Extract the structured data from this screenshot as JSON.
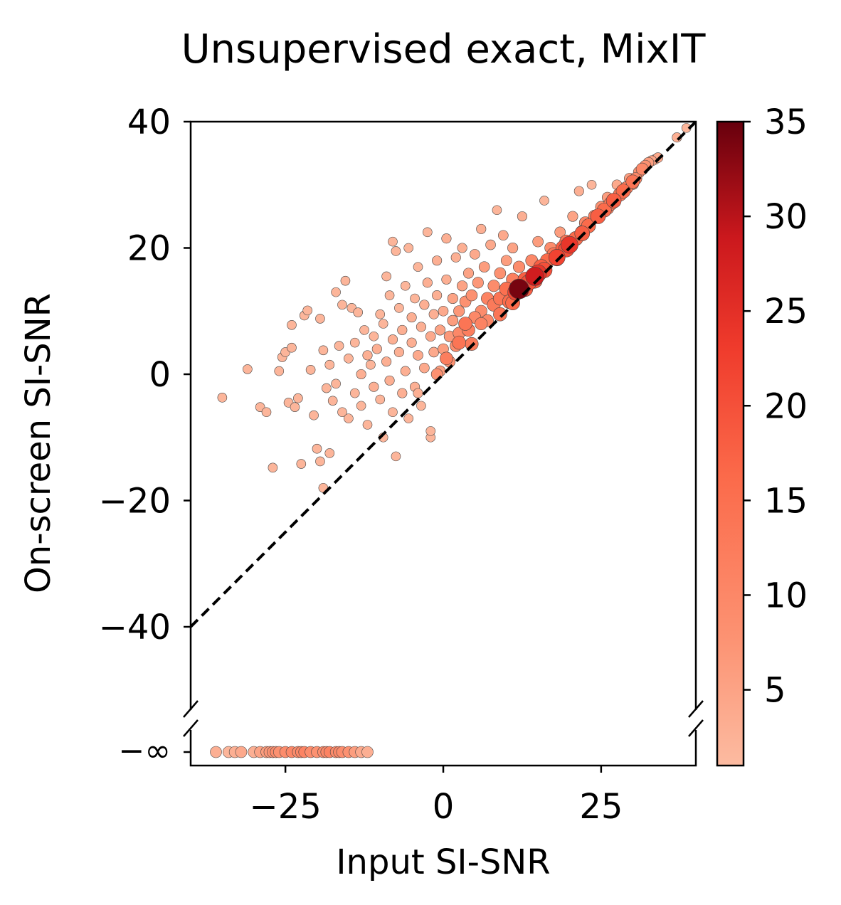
{
  "chart_data": {
    "type": "scatter",
    "title": "Unsupervised exact, MixIT",
    "xlabel": "Input SI-SNR",
    "ylabel": "On-screen SI-SNR",
    "xlim": [
      -40,
      40
    ],
    "ylim": [
      -62,
      40
    ],
    "x_ticks": [
      -25,
      0,
      25
    ],
    "x_tick_labels": [
      "−25",
      "0",
      "25"
    ],
    "y_ticks": [
      40,
      20,
      0,
      -20,
      -40
    ],
    "y_tick_labels": [
      "40",
      "20",
      "0",
      "−20",
      "−40"
    ],
    "neg_inf_label": "−∞",
    "axis_break": true,
    "reference_line": {
      "style": "dashed",
      "color": "#000000",
      "from": [
        -40,
        -40
      ],
      "to": [
        40,
        40
      ]
    },
    "colorbar": {
      "min": 1,
      "max": 35,
      "ticks": [
        5,
        10,
        15,
        20,
        25,
        30,
        35
      ],
      "tick_labels": [
        "5",
        "10",
        "15",
        "20",
        "25",
        "30",
        "35"
      ],
      "colormap": "Reds"
    },
    "grid": false,
    "series": [
      {
        "points": [
          [
            -35,
            -3.7,
            2
          ],
          [
            -31,
            0.8,
            2
          ],
          [
            -29,
            -5.2,
            2
          ],
          [
            -28,
            -6,
            2
          ],
          [
            -27,
            -14.8,
            2
          ],
          [
            -26,
            0.5,
            2
          ],
          [
            -25.5,
            2.7,
            2
          ],
          [
            -25,
            3.5,
            2
          ],
          [
            -24.5,
            -4.5,
            2
          ],
          [
            -24,
            4.2,
            2
          ],
          [
            -24,
            7.8,
            2
          ],
          [
            -23.5,
            -5.2,
            2
          ],
          [
            -23,
            -3.8,
            2
          ],
          [
            -22.5,
            -14.2,
            2
          ],
          [
            -22,
            9.3,
            2
          ],
          [
            -21.5,
            10.1,
            2
          ],
          [
            -21,
            0.7,
            2
          ],
          [
            -20.5,
            -6.5,
            2
          ],
          [
            -20,
            -11.8,
            2
          ],
          [
            -19.5,
            -13.8,
            2
          ],
          [
            -19.5,
            8.8,
            2
          ],
          [
            -19,
            3.8,
            2
          ],
          [
            -18.5,
            -2.2,
            2
          ],
          [
            -18,
            -12.5,
            2
          ],
          [
            -18,
            1.5,
            2
          ],
          [
            -17.5,
            -4.2,
            2
          ],
          [
            -17,
            13,
            2
          ],
          [
            -17,
            -1.5,
            2
          ],
          [
            -16.5,
            4.5,
            2
          ],
          [
            -16,
            11,
            2
          ],
          [
            -16,
            -6,
            2
          ],
          [
            -15.5,
            14.8,
            2
          ],
          [
            -15,
            2.5,
            2
          ],
          [
            -15,
            -7,
            2
          ],
          [
            -14.5,
            10.5,
            2
          ],
          [
            -14,
            -3,
            2
          ],
          [
            -14,
            5,
            2
          ],
          [
            -13.5,
            9.8,
            2
          ],
          [
            -13,
            -5,
            2
          ],
          [
            -13,
            0,
            3
          ],
          [
            -12.5,
            7,
            2
          ],
          [
            -12,
            3,
            3
          ],
          [
            -12,
            -8,
            2
          ],
          [
            -11.5,
            1.5,
            2
          ],
          [
            -11,
            6,
            2
          ],
          [
            -11,
            -2,
            3
          ],
          [
            -10.5,
            4,
            3
          ],
          [
            -10,
            9.5,
            2
          ],
          [
            -10,
            -4,
            2
          ],
          [
            -9.5,
            8,
            2
          ],
          [
            -9.5,
            -10,
            2
          ],
          [
            -9,
            2,
            3
          ],
          [
            -9,
            15.5,
            2
          ],
          [
            -8.5,
            12.5,
            2
          ],
          [
            -8.5,
            -1,
            3
          ],
          [
            -8,
            21,
            2
          ],
          [
            -8,
            5.5,
            3
          ],
          [
            -8,
            -6,
            2
          ],
          [
            -7.5,
            19.5,
            2
          ],
          [
            -7.5,
            -13,
            2
          ],
          [
            -7,
            10.5,
            2
          ],
          [
            -7,
            3.5,
            3
          ],
          [
            -6.5,
            -3,
            3
          ],
          [
            -6.5,
            7,
            3
          ],
          [
            -6,
            14,
            2
          ],
          [
            -6,
            0.5,
            3
          ],
          [
            -5.5,
            20,
            2
          ],
          [
            -5.5,
            -7,
            2
          ],
          [
            -5,
            9,
            3
          ],
          [
            -5,
            5,
            3
          ],
          [
            -4.5,
            12,
            2
          ],
          [
            -4.5,
            -2,
            3
          ],
          [
            -4,
            17,
            2
          ],
          [
            -4,
            3,
            4
          ],
          [
            -3.5,
            7.5,
            3
          ],
          [
            -3.5,
            -5,
            2
          ],
          [
            -3,
            11,
            3
          ],
          [
            -3,
            1,
            4
          ],
          [
            -2.5,
            22.5,
            2
          ],
          [
            -2.5,
            14.5,
            3
          ],
          [
            -2,
            6,
            4
          ],
          [
            -2,
            -10,
            2
          ],
          [
            -1.5,
            9.5,
            3
          ],
          [
            -1.5,
            3.5,
            4
          ],
          [
            -1,
            18,
            3
          ],
          [
            -1,
            12.5,
            3
          ],
          [
            -0.5,
            7,
            5
          ],
          [
            -0.5,
            0.5,
            6
          ],
          [
            0,
            4,
            6
          ],
          [
            0,
            10,
            4
          ],
          [
            0.5,
            21.5,
            3
          ],
          [
            0.5,
            15,
            3
          ],
          [
            1,
            6,
            7
          ],
          [
            1,
            2,
            8
          ],
          [
            1.5,
            12,
            5
          ],
          [
            1.5,
            8.5,
            6
          ],
          [
            2,
            18.5,
            3
          ],
          [
            2,
            4.5,
            9
          ],
          [
            2.5,
            10,
            7
          ],
          [
            2.5,
            6.5,
            10
          ],
          [
            3,
            14,
            5
          ],
          [
            3,
            20,
            3
          ],
          [
            3.5,
            8,
            14
          ],
          [
            3.5,
            11.5,
            8
          ],
          [
            4,
            16,
            5
          ],
          [
            4,
            7,
            12
          ],
          [
            4.5,
            12.5,
            8
          ],
          [
            5,
            19,
            4
          ],
          [
            5,
            9,
            10
          ],
          [
            5.5,
            14.5,
            7
          ],
          [
            6,
            10,
            9
          ],
          [
            6,
            23,
            3
          ],
          [
            6.5,
            17,
            6
          ],
          [
            7,
            12,
            11
          ],
          [
            7,
            8.5,
            10
          ],
          [
            7.5,
            20.5,
            4
          ],
          [
            8,
            14,
            9
          ],
          [
            8,
            11,
            13
          ],
          [
            8.5,
            26,
            2
          ],
          [
            9,
            16,
            8
          ],
          [
            9,
            12,
            14
          ],
          [
            9.5,
            22,
            4
          ],
          [
            10,
            13.5,
            15
          ],
          [
            10,
            18,
            6
          ],
          [
            10.5,
            11.5,
            16
          ],
          [
            11,
            15,
            12
          ],
          [
            11,
            20,
            5
          ],
          [
            11.5,
            13,
            22
          ],
          [
            12,
            13.5,
            34
          ],
          [
            12,
            17,
            9
          ],
          [
            12.5,
            25,
            3
          ],
          [
            13,
            15,
            18
          ],
          [
            13.5,
            14.5,
            20
          ],
          [
            14,
            18,
            10
          ],
          [
            14.5,
            15.5,
            28
          ],
          [
            15,
            16,
            24
          ],
          [
            15,
            21,
            6
          ],
          [
            15.5,
            17,
            18
          ],
          [
            16,
            27.5,
            2
          ],
          [
            16.5,
            18,
            16
          ],
          [
            17,
            20,
            9
          ],
          [
            17.5,
            19,
            14
          ],
          [
            18,
            18.5,
            22
          ],
          [
            18.5,
            22.5,
            6
          ],
          [
            19,
            20,
            18
          ],
          [
            19.5,
            21,
            14
          ],
          [
            20,
            20.5,
            24
          ],
          [
            20.5,
            25,
            5
          ],
          [
            21,
            21.5,
            16
          ],
          [
            21.5,
            29,
            3
          ],
          [
            22,
            22.5,
            14
          ],
          [
            22.5,
            24,
            10
          ],
          [
            23,
            23.5,
            16
          ],
          [
            23.5,
            30,
            2
          ],
          [
            24,
            25,
            12
          ],
          [
            24.5,
            25,
            18
          ],
          [
            25,
            26.5,
            8
          ],
          [
            25.5,
            26,
            16
          ],
          [
            26,
            28,
            6
          ],
          [
            26.5,
            27,
            14
          ],
          [
            27,
            27.5,
            18
          ],
          [
            27.5,
            30,
            4
          ],
          [
            28,
            28.5,
            14
          ],
          [
            28.5,
            29,
            16
          ],
          [
            29,
            29.5,
            12
          ],
          [
            29.5,
            31,
            6
          ],
          [
            30,
            30.5,
            14
          ],
          [
            30.5,
            31,
            10
          ],
          [
            31,
            32,
            8
          ],
          [
            31.5,
            32.5,
            10
          ],
          [
            32,
            33,
            8
          ],
          [
            32.5,
            33.5,
            6
          ],
          [
            33,
            33.8,
            5
          ],
          [
            33.5,
            34,
            4
          ],
          [
            37,
            37.5,
            3
          ],
          [
            38.5,
            39,
            2
          ],
          [
            -2,
            -9,
            2
          ],
          [
            -4,
            -3,
            3
          ],
          [
            0.5,
            2.5,
            12
          ],
          [
            2.5,
            5,
            14
          ],
          [
            6,
            8,
            11
          ],
          [
            13,
            13.5,
            18
          ],
          [
            16,
            16.5,
            20
          ],
          [
            19.5,
            19.8,
            20
          ],
          [
            22,
            22.3,
            18
          ],
          [
            9,
            9.5,
            14
          ],
          [
            4.5,
            4.8,
            13
          ],
          [
            -1,
            0,
            8
          ],
          [
            11,
            11.3,
            16
          ],
          [
            14.5,
            14.8,
            18
          ],
          [
            18,
            18.3,
            17
          ],
          [
            26,
            26.3,
            12
          ],
          [
            30,
            30.2,
            10
          ],
          [
            34,
            34.3,
            4
          ],
          [
            -19,
            -18,
            2
          ]
        ]
      }
    ],
    "neg_inf_points": [
      [
        -36,
        3
      ],
      [
        -34,
        2
      ],
      [
        -33,
        3
      ],
      [
        -32,
        4
      ],
      [
        -30,
        3
      ],
      [
        -29,
        5
      ],
      [
        -28,
        6
      ],
      [
        -27.5,
        7
      ],
      [
        -27,
        8
      ],
      [
        -26.5,
        9
      ],
      [
        -26,
        8
      ],
      [
        -25,
        9
      ],
      [
        -24,
        10
      ],
      [
        -23,
        9
      ],
      [
        -22.5,
        10
      ],
      [
        -22,
        11
      ],
      [
        -21,
        9
      ],
      [
        -20,
        8
      ],
      [
        -19,
        9
      ],
      [
        -18.5,
        10
      ],
      [
        -18,
        11
      ],
      [
        -17,
        9
      ],
      [
        -16.5,
        10
      ],
      [
        -16,
        9
      ],
      [
        -15,
        8
      ],
      [
        -14,
        6
      ],
      [
        -13,
        4
      ],
      [
        -12,
        3
      ]
    ]
  }
}
